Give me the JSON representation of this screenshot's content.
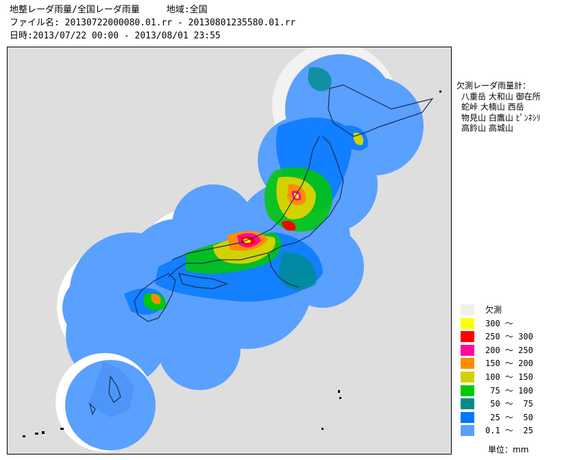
{
  "header": {
    "title": "地整レーダ雨量/全国レーダ雨量　　　地域:全国",
    "file": "ファイル名: 20130722000080.01.rr - 20130801235580.01.rr",
    "date": "日時:2013/07/22 00:00 - 2013/08/01 23:55"
  },
  "missing_radars": {
    "label": "欠測レーダ雨量計：",
    "rows": [
      "八重岳 大和山 御在所",
      "蛇峠 大楠山 西岳",
      "物見山 白鷹山 ﾋﾟﾝﾈｼﾘ",
      "高鈴山 高城山"
    ]
  },
  "legend": {
    "items": [
      {
        "label": "欠測",
        "color": "#efefef"
      },
      {
        "label": "300 ～",
        "color": "#ffff00"
      },
      {
        "label": "250 ～ 300",
        "color": "#ff0000"
      },
      {
        "label": "200 ～ 250",
        "color": "#ff0c96"
      },
      {
        "label": "150 ～ 200",
        "color": "#ff8c00"
      },
      {
        "label": "100 ～ 150",
        "color": "#d2d200"
      },
      {
        "label": " 75 ～ 100",
        "color": "#00c800"
      },
      {
        "label": " 50 ～  75",
        "color": "#008c8c"
      },
      {
        "label": " 25 ～  50",
        "color": "#0078ff"
      },
      {
        "label": "0.1 ～  25",
        "color": "#5aa0ff"
      }
    ],
    "unit": "単位：mm"
  }
}
